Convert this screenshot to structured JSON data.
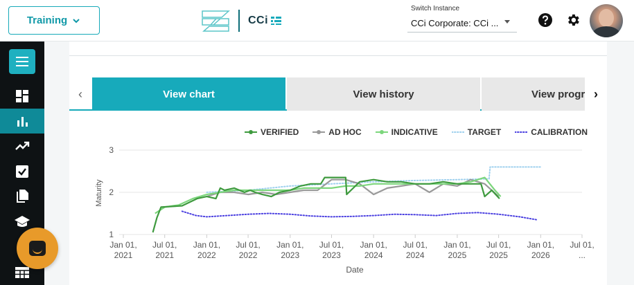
{
  "header": {
    "training_label": "Training",
    "logo_text": "CCi",
    "switch_label": "Switch Instance",
    "switch_value": "CCi Corporate: CCi ...",
    "icons": [
      "chevron-down-icon",
      "help-icon",
      "gear-icon"
    ]
  },
  "sidebar": {
    "items": [
      {
        "name": "dashboard-icon",
        "active": false
      },
      {
        "name": "bar-chart-icon",
        "active": true
      },
      {
        "name": "trend-icon",
        "active": false
      },
      {
        "name": "checkbox-icon",
        "active": false
      },
      {
        "name": "documents-icon",
        "active": false
      },
      {
        "name": "graduation-cap-icon",
        "active": false
      },
      {
        "name": "table-icon",
        "active": false
      }
    ]
  },
  "tabs": [
    {
      "label": "View chart",
      "active": true
    },
    {
      "label": "View history",
      "active": false
    },
    {
      "label": "View progr",
      "active": false
    }
  ],
  "chart_data": {
    "type": "line",
    "xlabel": "Date",
    "ylabel": "Maturity",
    "ylim": [
      1,
      3
    ],
    "yticks": [
      "3",
      "2",
      "1"
    ],
    "xticks": [
      [
        "Jan 01,",
        "2021"
      ],
      [
        "Jul 01,",
        "2021"
      ],
      [
        "Jan 01,",
        "2022"
      ],
      [
        "Jul 01,",
        "2022"
      ],
      [
        "Jan 01,",
        "2023"
      ],
      [
        "Jul 01,",
        "2023"
      ],
      [
        "Jan 01,",
        "2024"
      ],
      [
        "Jul 01,",
        "2024"
      ],
      [
        "Jan 01,",
        "2025"
      ],
      [
        "Jul 01,",
        "2025"
      ],
      [
        "Jan 01,",
        "2026"
      ],
      [
        "Jul 01,",
        "..."
      ]
    ],
    "grid": true,
    "legend_position": "top-right",
    "series": [
      {
        "name": "VERIFIED",
        "color": "#3e9a3e",
        "dash": "solid",
        "x": [
          "2021-05-10",
          "2021-05-28",
          "2021-06-15",
          "2021-09-15",
          "2021-11-20",
          "2022-01-01",
          "2022-02-10",
          "2022-03-01",
          "2022-03-20",
          "2022-05-01",
          "2022-06-15",
          "2022-07-10",
          "2022-08-01",
          "2022-09-01",
          "2022-10-10",
          "2022-11-15",
          "2023-01-01",
          "2023-02-15",
          "2023-04-01",
          "2023-05-15",
          "2023-06-01",
          "2023-07-15",
          "2023-09-01",
          "2023-09-05",
          "2023-11-01",
          "2024-01-01",
          "2024-03-01",
          "2024-05-01",
          "2024-07-01",
          "2024-09-01",
          "2024-11-01",
          "2025-01-01",
          "2025-03-01",
          "2025-04-15",
          "2025-05-01",
          "2025-06-01",
          "2025-07-05"
        ],
        "y": [
          1.05,
          1.4,
          1.65,
          1.68,
          1.85,
          1.9,
          1.85,
          2.1,
          2.05,
          2.1,
          2.0,
          2.05,
          2.0,
          1.95,
          1.9,
          2.0,
          2.05,
          2.15,
          2.2,
          2.2,
          2.35,
          2.35,
          2.35,
          1.95,
          2.25,
          2.3,
          2.25,
          2.25,
          2.2,
          2.2,
          2.25,
          2.2,
          2.2,
          2.2,
          1.9,
          2.05,
          1.85
        ]
      },
      {
        "name": "AD HOC",
        "color": "#999999",
        "dash": "solid",
        "x": [
          "2022-01-01",
          "2022-03-01",
          "2022-05-01",
          "2022-07-01",
          "2022-09-01",
          "2022-11-01",
          "2023-01-01",
          "2023-03-01",
          "2023-05-01",
          "2023-07-01",
          "2023-09-01",
          "2023-11-01",
          "2024-01-01",
          "2024-03-01",
          "2024-05-01",
          "2024-07-01",
          "2024-09-01",
          "2024-11-01",
          "2025-01-01",
          "2025-03-01",
          "2025-05-01",
          "2025-07-01"
        ],
        "y": [
          1.9,
          2.0,
          2.0,
          1.95,
          2.0,
          1.95,
          2.0,
          2.05,
          2.05,
          2.3,
          2.3,
          2.2,
          1.95,
          2.1,
          2.15,
          2.2,
          2.0,
          2.2,
          2.15,
          2.3,
          2.2,
          1.9
        ]
      },
      {
        "name": "INDICATIVE",
        "color": "#7cd67c",
        "dash": "solid",
        "x": [
          "2021-05-20",
          "2021-07-01",
          "2021-09-01",
          "2021-11-01",
          "2022-01-01",
          "2022-03-01",
          "2022-05-01",
          "2022-07-01",
          "2022-09-01",
          "2022-11-01",
          "2023-01-01",
          "2023-03-01",
          "2023-05-01",
          "2023-07-01",
          "2023-09-01",
          "2023-11-01",
          "2024-01-01",
          "2024-03-01",
          "2024-05-01",
          "2024-07-01",
          "2024-09-01",
          "2024-11-01",
          "2025-01-01",
          "2025-03-01",
          "2025-05-01",
          "2025-06-15",
          "2025-07-10"
        ],
        "y": [
          1.5,
          1.65,
          1.7,
          1.85,
          1.95,
          2.0,
          2.05,
          2.05,
          2.05,
          2.05,
          2.05,
          2.1,
          2.1,
          2.1,
          2.15,
          2.15,
          2.2,
          2.2,
          2.2,
          2.2,
          2.2,
          2.2,
          2.2,
          2.25,
          2.35,
          2.05,
          1.9
        ]
      },
      {
        "name": "TARGET",
        "color": "#9ed0ee",
        "dash": "dotted",
        "x": [
          "2022-01-01",
          "2022-07-01",
          "2023-01-01",
          "2023-07-01",
          "2024-01-01",
          "2024-07-01",
          "2025-01-01",
          "2025-05-20",
          "2025-05-25",
          "2026-01-01"
        ],
        "y": [
          2.0,
          2.05,
          2.15,
          2.2,
          2.25,
          2.28,
          2.3,
          2.32,
          2.6,
          2.6
        ]
      },
      {
        "name": "CALIBRATION",
        "color": "#4a3fe0",
        "dash": "dotted",
        "x": [
          "2021-09-15",
          "2021-11-15",
          "2022-01-01",
          "2022-04-01",
          "2022-07-01",
          "2022-10-01",
          "2023-01-01",
          "2023-04-01",
          "2023-07-01",
          "2023-10-01",
          "2024-01-01",
          "2024-04-01",
          "2024-07-01",
          "2024-10-01",
          "2025-01-01",
          "2025-04-01",
          "2025-07-01",
          "2025-10-01",
          "2025-12-15"
        ],
        "y": [
          1.55,
          1.45,
          1.42,
          1.45,
          1.48,
          1.5,
          1.48,
          1.44,
          1.42,
          1.43,
          1.45,
          1.48,
          1.47,
          1.45,
          1.5,
          1.52,
          1.48,
          1.42,
          1.35
        ]
      }
    ]
  }
}
